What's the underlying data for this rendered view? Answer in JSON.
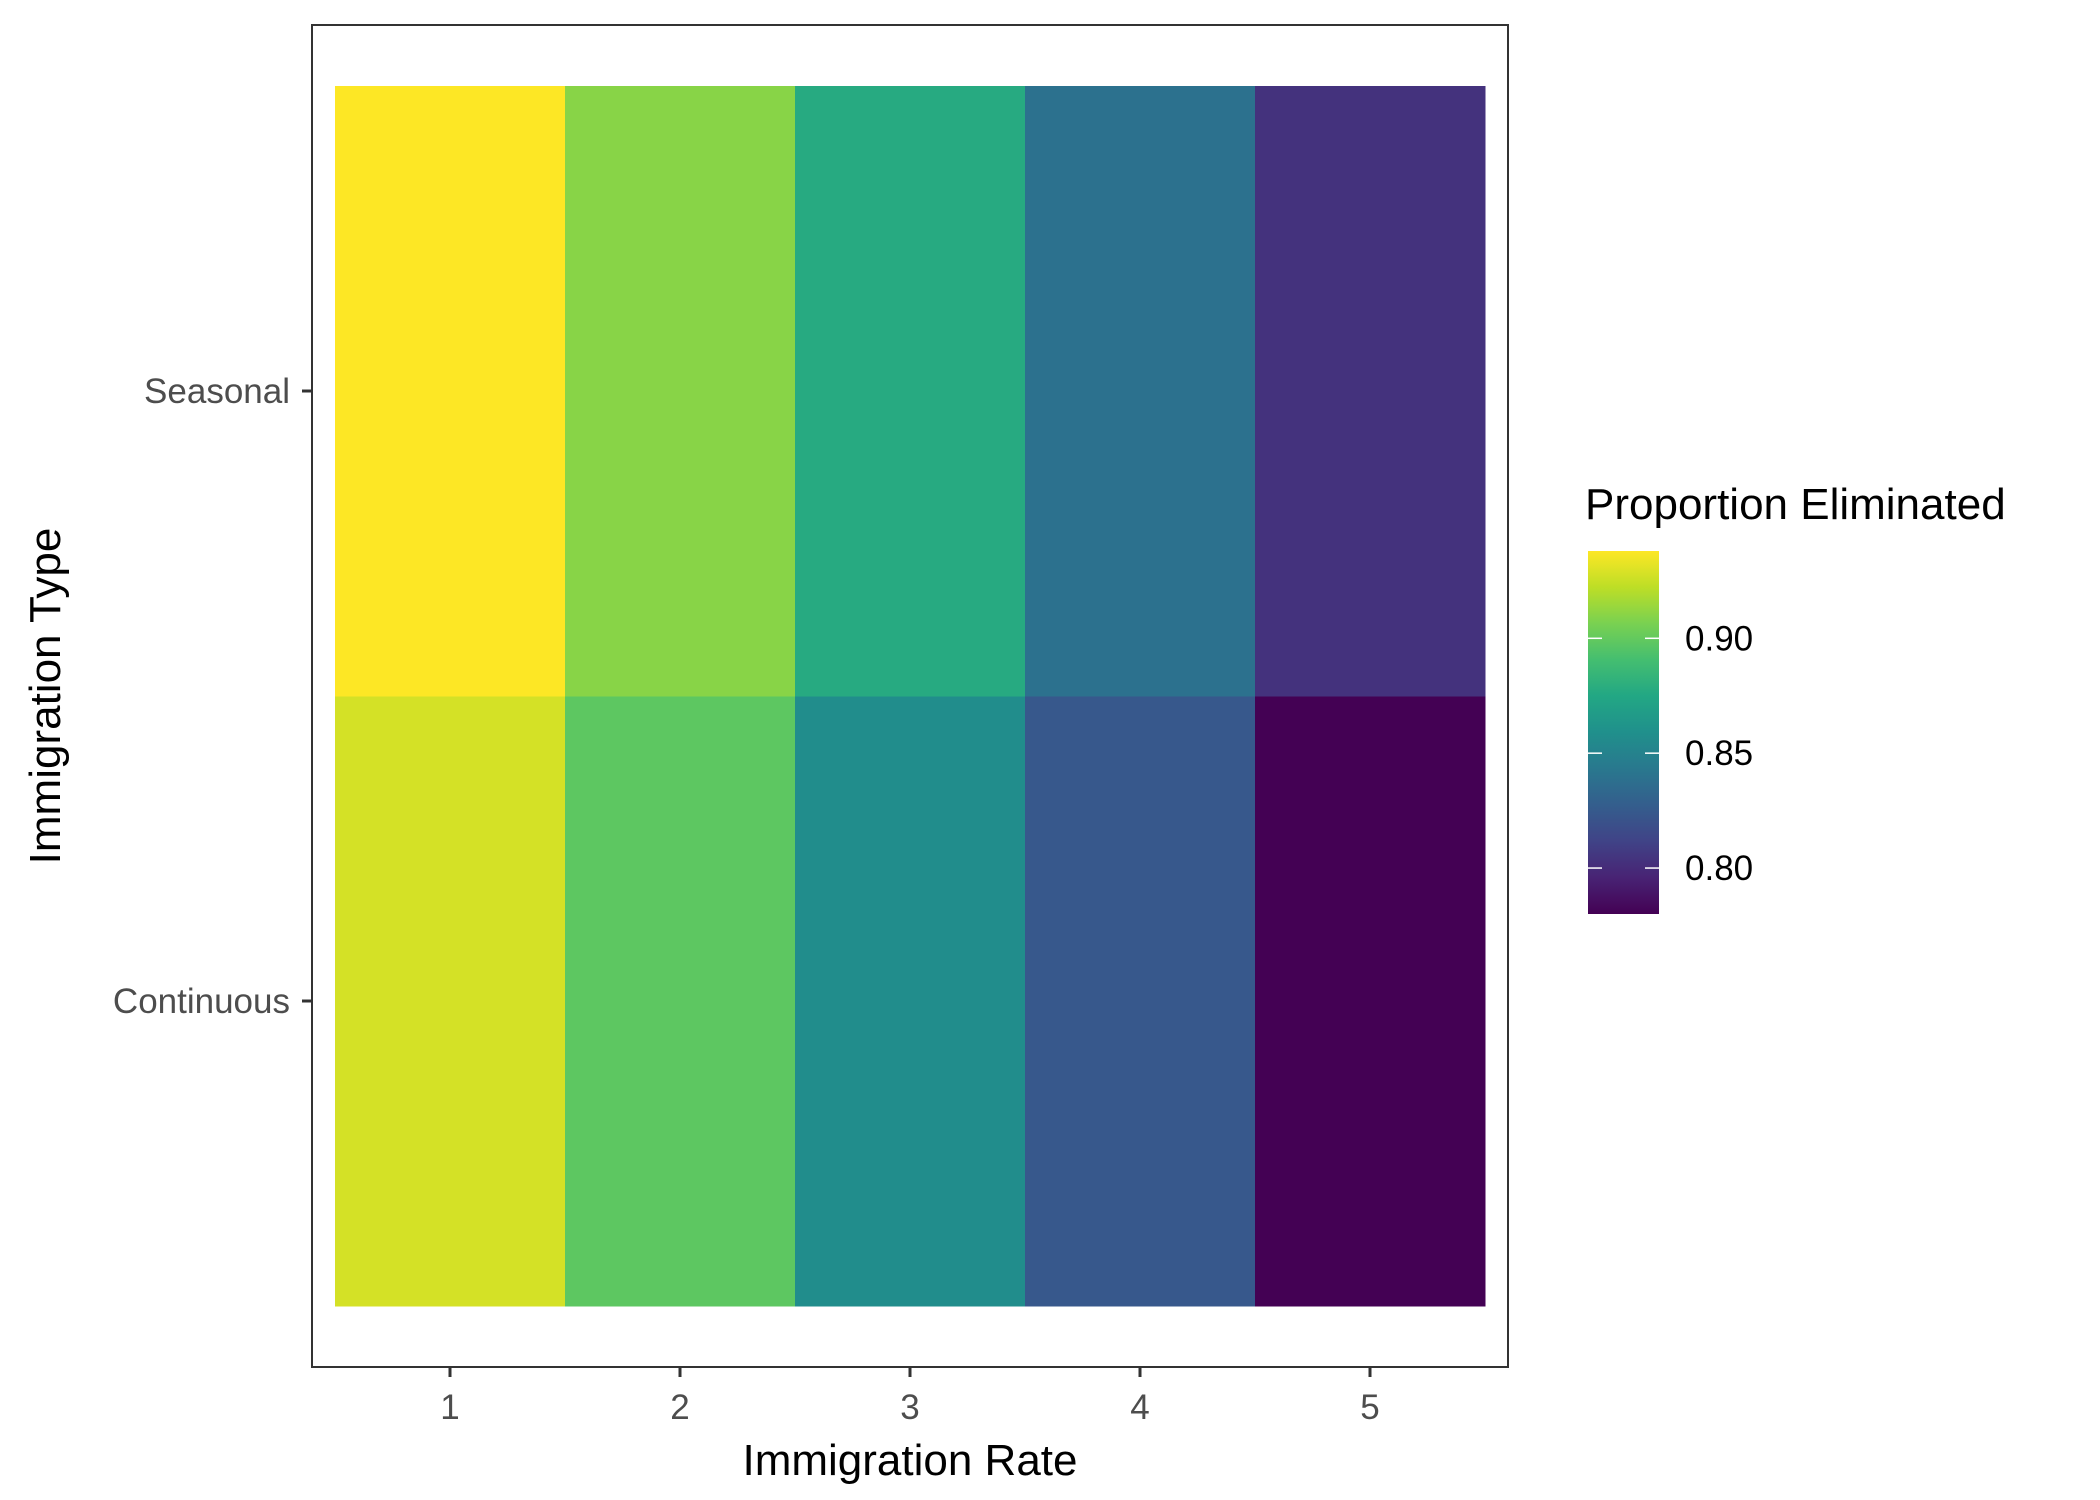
{
  "chart_data": {
    "type": "heatmap",
    "xlabel": "Immigration Rate",
    "ylabel": "Immigration Type",
    "x_categories": [
      "1",
      "2",
      "3",
      "4",
      "5"
    ],
    "y_categories": [
      "Continuous",
      "Seasonal"
    ],
    "values": {
      "Seasonal": [
        0.938,
        0.91,
        0.877,
        0.839,
        0.803
      ],
      "Continuous": [
        0.928,
        0.898,
        0.857,
        0.824,
        0.78
      ]
    },
    "legend": {
      "title": "Proportion Eliminated",
      "placement": "right",
      "min": 0.78,
      "max": 0.938,
      "breaks": [
        0.8,
        0.85,
        0.9
      ],
      "break_labels": [
        "0.80",
        "0.85",
        "0.90"
      ]
    },
    "colormap": "viridis",
    "grid": false
  }
}
